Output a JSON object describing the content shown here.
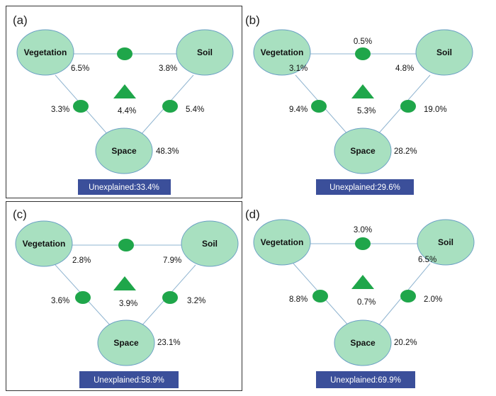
{
  "colors": {
    "node_fill": "#a8e0c0",
    "node_stroke": "#6a9fc4",
    "marker_fill": "#1fa64a",
    "line": "#8fb4d0",
    "unexplained_bg": "#3b4f9a",
    "panel_border": "#333333"
  },
  "node_labels": {
    "vegetation": "Vegetation",
    "soil": "Soil",
    "space": "Space"
  },
  "panels": [
    {
      "id": "a",
      "label": "(a)",
      "veg_soil": "",
      "veg": "6.5%",
      "soil": "3.8%",
      "veg_space": "3.3%",
      "all": "4.4%",
      "soil_space": "5.4%",
      "space": "48.3%",
      "unexplained": "Unexplained:33.4%"
    },
    {
      "id": "b",
      "label": "(b)",
      "veg_soil": "0.5%",
      "veg": "3.1%",
      "soil": "4.8%",
      "veg_space": "9.4%",
      "all": "5.3%",
      "soil_space": "19.0%",
      "space": "28.2%",
      "unexplained": "Unexplained:29.6%"
    },
    {
      "id": "c",
      "label": "(c)",
      "veg_soil": "",
      "veg": "2.8%",
      "soil": "7.9%",
      "veg_space": "3.6%",
      "all": "3.9%",
      "soil_space": "3.2%",
      "space": "23.1%",
      "unexplained": "Unexplained:58.9%"
    },
    {
      "id": "d",
      "label": "(d)",
      "veg_soil": "3.0%",
      "veg": "",
      "soil": "6.5%",
      "veg_space": "8.8%",
      "all": "0.7%",
      "soil_space": "2.0%",
      "space": "20.2%",
      "unexplained": "Unexplained:69.9%"
    }
  ]
}
